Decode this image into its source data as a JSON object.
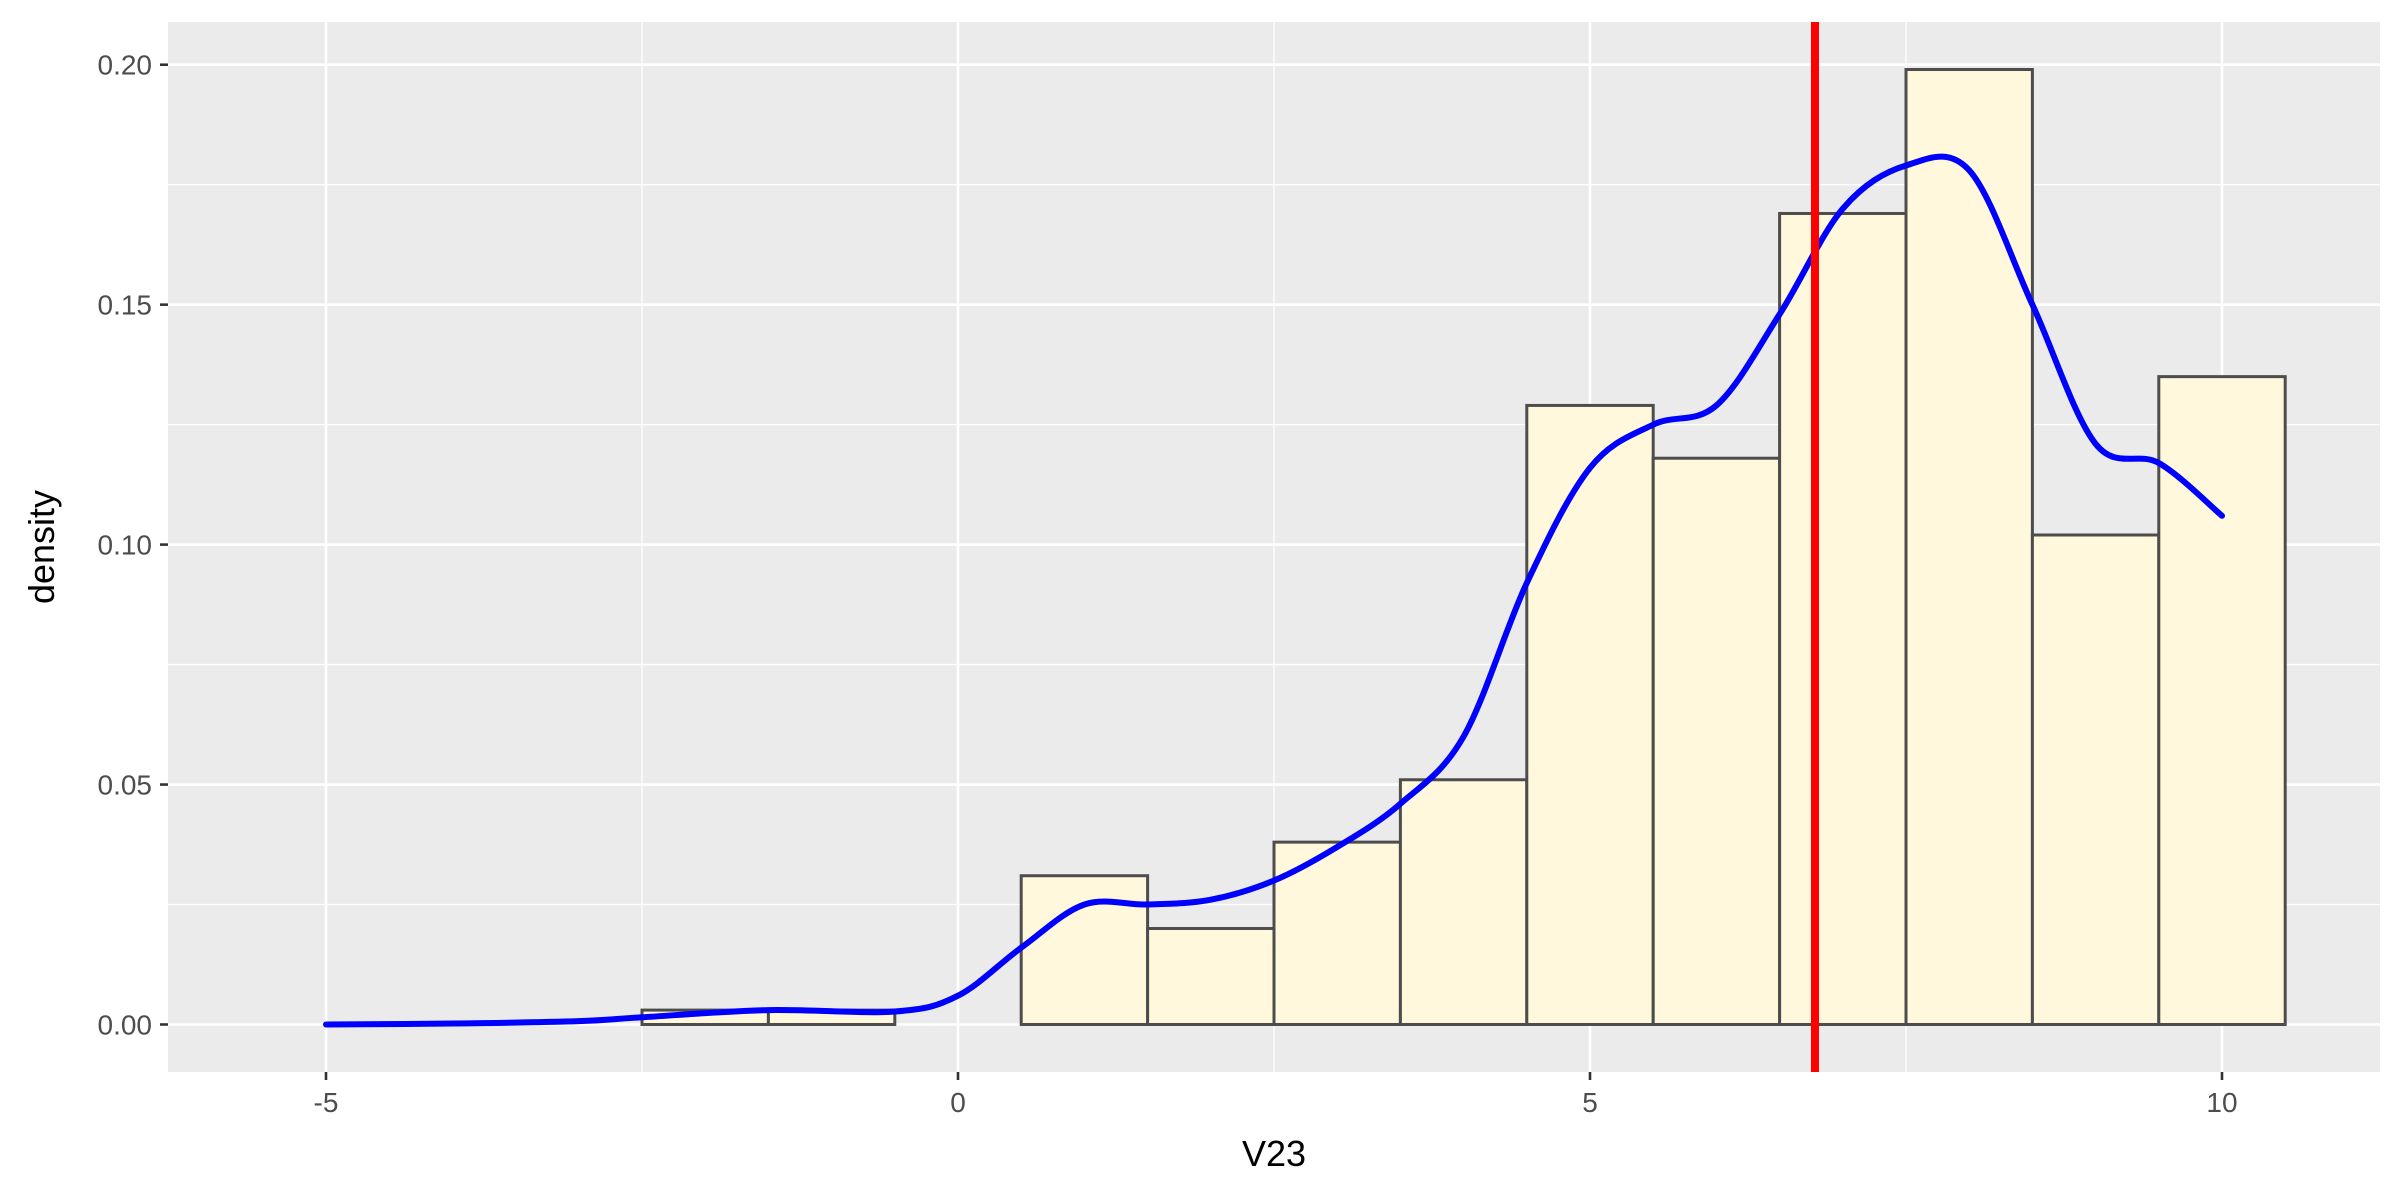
{
  "chart_data": {
    "type": "bar",
    "subtype": "histogram-with-density",
    "xlabel": "V23",
    "ylabel": "density",
    "xlim": [
      -6.25,
      11.25
    ],
    "ylim": [
      -0.0099,
      0.2089
    ],
    "x_ticks": [
      -5,
      0,
      5,
      10
    ],
    "x_tick_labels": [
      "-5",
      "0",
      "5",
      "10"
    ],
    "y_ticks": [
      0.0,
      0.05,
      0.1,
      0.15,
      0.2
    ],
    "y_tick_labels": [
      "0.00",
      "0.05",
      "0.10",
      "0.15",
      "0.20"
    ],
    "grid": true,
    "histogram": {
      "bin_width": 1,
      "bins": [
        {
          "left": -5.5,
          "right": -4.5,
          "density": 0.0
        },
        {
          "left": -4.5,
          "right": -3.5,
          "density": 0.0
        },
        {
          "left": -3.5,
          "right": -2.5,
          "density": 0.0
        },
        {
          "left": -2.5,
          "right": -1.5,
          "density": 0.003
        },
        {
          "left": -1.5,
          "right": -0.5,
          "density": 0.003
        },
        {
          "left": -0.5,
          "right": 0.5,
          "density": 0.0
        },
        {
          "left": 0.5,
          "right": 1.5,
          "density": 0.031
        },
        {
          "left": 1.5,
          "right": 2.5,
          "density": 0.02
        },
        {
          "left": 2.5,
          "right": 3.5,
          "density": 0.038
        },
        {
          "left": 3.5,
          "right": 4.5,
          "density": 0.051
        },
        {
          "left": 4.5,
          "right": 5.5,
          "density": 0.129
        },
        {
          "left": 5.5,
          "right": 6.5,
          "density": 0.118
        },
        {
          "left": 6.5,
          "right": 7.5,
          "density": 0.169
        },
        {
          "left": 7.5,
          "right": 8.5,
          "density": 0.199
        },
        {
          "left": 8.5,
          "right": 9.5,
          "density": 0.102
        },
        {
          "left": 9.5,
          "right": 10.5,
          "density": 0.135
        }
      ],
      "fill_color": "#fff8dc",
      "outline_color": "#4d4d4d"
    },
    "density_curve": {
      "color": "#0000ff",
      "x": [
        -5,
        -4,
        -3,
        -2.5,
        -1.5,
        -0.5,
        0,
        0.5,
        1,
        1.5,
        2,
        2.5,
        3,
        3.5,
        4,
        4.5,
        5,
        5.5,
        6,
        6.5,
        7,
        7.5,
        8,
        8.5,
        9,
        9.5,
        10
      ],
      "y": [
        0.0,
        0.0002,
        0.0007,
        0.0015,
        0.003,
        0.0027,
        0.006,
        0.016,
        0.025,
        0.025,
        0.026,
        0.03,
        0.037,
        0.046,
        0.06,
        0.092,
        0.116,
        0.125,
        0.129,
        0.148,
        0.17,
        0.179,
        0.178,
        0.15,
        0.121,
        0.117,
        0.106
      ]
    },
    "vline": {
      "x": 6.78,
      "color": "#ff0000"
    },
    "panel_background": "#ebebeb",
    "grid_color": "#ffffff"
  }
}
